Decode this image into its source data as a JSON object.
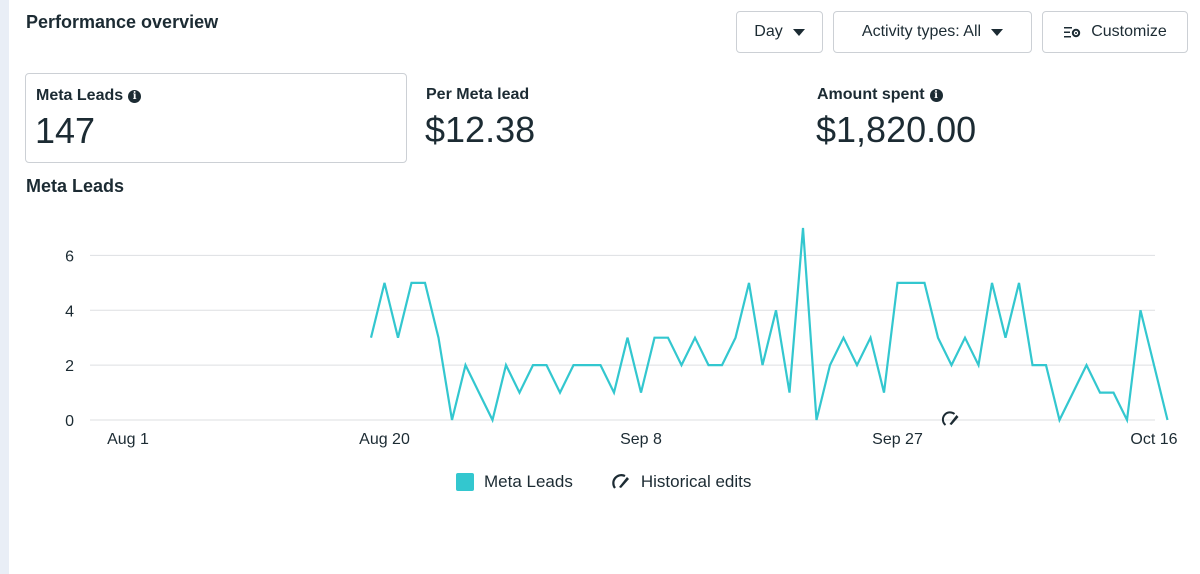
{
  "header": {
    "title": "Performance overview",
    "day_label": "Day",
    "activity_label": "Activity types: All",
    "customize_label": "Customize"
  },
  "metrics": [
    {
      "label": "Meta Leads",
      "value": "147",
      "info": true
    },
    {
      "label": "Per Meta lead",
      "value": "$12.38",
      "info": false
    },
    {
      "label": "Amount spent",
      "value": "$1,820.00",
      "info": true
    }
  ],
  "colors": {
    "series": "#33c7cf",
    "grid": "#dddfe2",
    "text": "#1c2b33"
  },
  "icons": [
    "info-icon",
    "caret-down-icon",
    "customize-icon",
    "historical-edit-icon"
  ],
  "chart_data": {
    "type": "line",
    "title": "Meta Leads",
    "x_ticks": [
      {
        "label": "Aug 1",
        "day": 0
      },
      {
        "label": "Aug 20",
        "day": 19
      },
      {
        "label": "Sep 8",
        "day": 38
      },
      {
        "label": "Sep 27",
        "day": 57
      },
      {
        "label": "Oct 16",
        "day": 76
      }
    ],
    "x_range": [
      "Aug 1",
      "Oct 16"
    ],
    "y_ticks": [
      0,
      2,
      4,
      6
    ],
    "ylim": [
      0,
      7
    ],
    "grid": true,
    "legend_position": "bottom",
    "series": [
      {
        "name": "Meta Leads",
        "start_date": "Aug 19",
        "values": [
          3,
          5,
          3,
          5,
          5,
          3,
          0,
          2,
          1,
          0,
          2,
          1,
          2,
          2,
          1,
          2,
          2,
          2,
          1,
          3,
          1,
          3,
          3,
          2,
          3,
          2,
          2,
          3,
          5,
          2,
          4,
          1,
          7,
          0,
          2,
          3,
          2,
          3,
          1,
          5,
          5,
          5,
          3,
          2,
          3,
          2,
          5,
          3,
          5,
          2,
          2,
          0,
          1,
          2,
          1,
          1,
          0,
          4,
          2,
          0
        ]
      }
    ],
    "annotations": [
      {
        "type": "historical-edit",
        "date": "Oct 1"
      }
    ],
    "legend": [
      "Meta Leads",
      "Historical edits"
    ]
  }
}
